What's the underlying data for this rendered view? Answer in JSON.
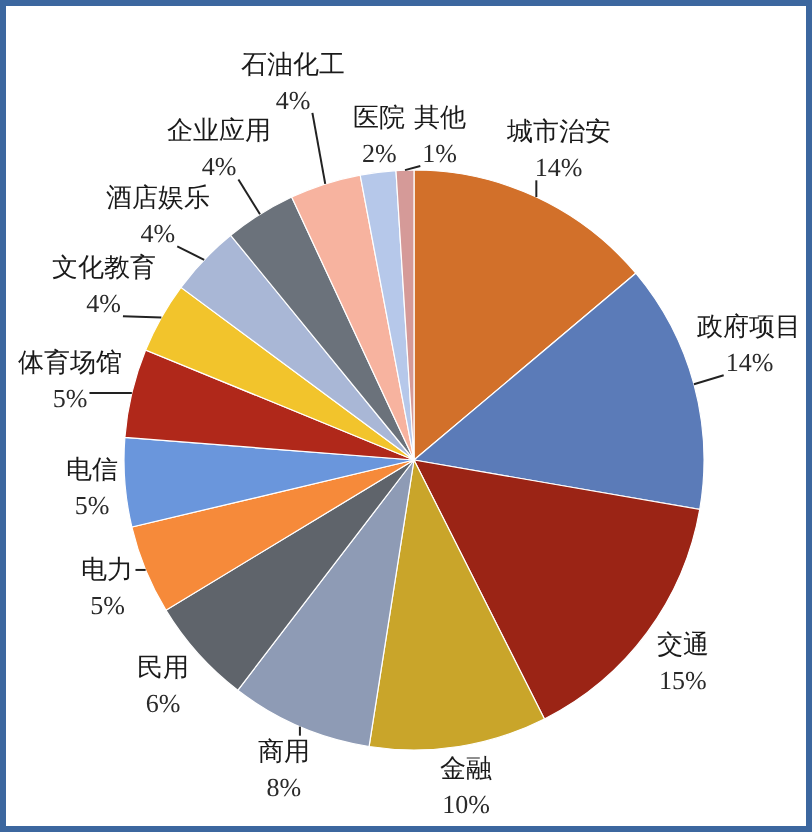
{
  "chart_data": {
    "type": "pie",
    "categories": [
      "城市治安",
      "政府项目",
      "交通",
      "金融",
      "商用",
      "民用",
      "电力",
      "电信",
      "体育场馆",
      "文化教育",
      "酒店娱乐",
      "企业应用",
      "石油化工",
      "医院",
      "其他"
    ],
    "values": [
      14,
      14,
      15,
      10,
      8,
      6,
      5,
      5,
      5,
      4,
      4,
      4,
      4,
      2,
      1
    ],
    "value_labels": [
      "14%",
      "14%",
      "15%",
      "10%",
      "8%",
      "6%",
      "5%",
      "5%",
      "5%",
      "4%",
      "4%",
      "4%",
      "4%",
      "2%",
      "1%"
    ],
    "colors": [
      "#d2702a",
      "#5b7bb8",
      "#9b2415",
      "#c9a52a",
      "#8e9bb5",
      "#5f646b",
      "#f68a3a",
      "#6a96dc",
      "#b0281a",
      "#f2c42c",
      "#a9b7d6",
      "#6b727b",
      "#f7b39f",
      "#b6c8ea",
      "#d59a98"
    ]
  }
}
